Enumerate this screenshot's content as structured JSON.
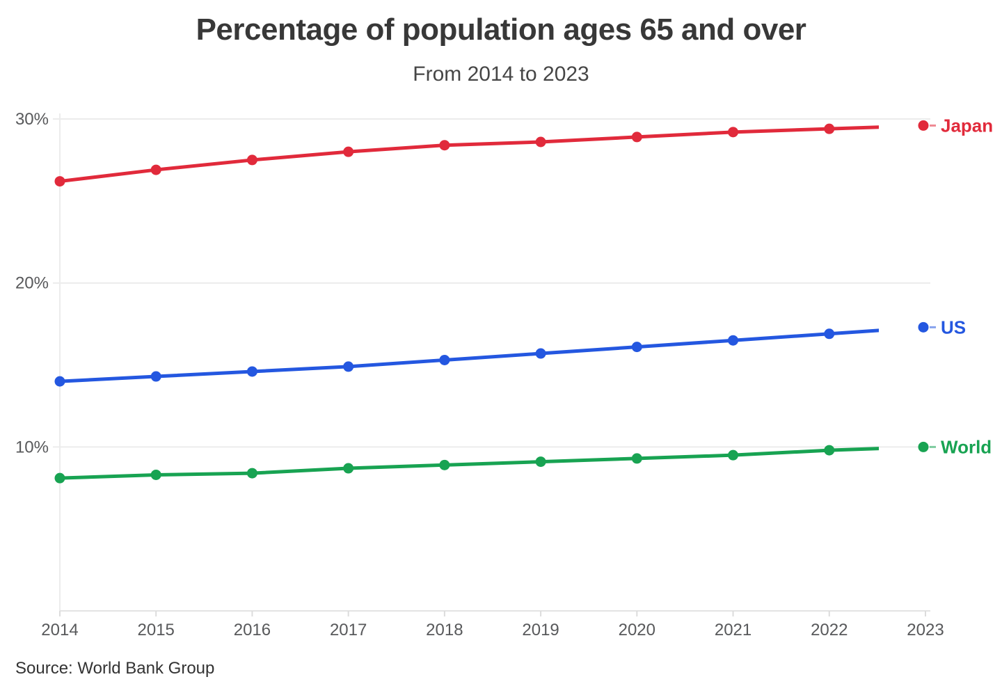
{
  "header": {
    "title": "Percentage of population ages 65 and over",
    "subtitle": "From 2014 to 2023"
  },
  "footer": {
    "source": "Source: World Bank Group"
  },
  "colors": {
    "japan": "#e12a3b",
    "us": "#2457e0",
    "world": "#18a352",
    "title_text": "#383838",
    "axis_text": "#58595b",
    "gridline": "#ececec"
  },
  "chart_data": {
    "type": "line",
    "title": "Percentage of population ages 65 and over",
    "subtitle": "From 2014 to 2023",
    "source": "Source: World Bank Group",
    "x": [
      2014,
      2015,
      2016,
      2017,
      2018,
      2019,
      2020,
      2021,
      2022,
      2023
    ],
    "series": [
      {
        "name": "Japan",
        "color": "#e12a3b",
        "values": [
          26.2,
          26.9,
          27.5,
          28.0,
          28.4,
          28.6,
          28.9,
          29.2,
          29.4,
          29.6
        ]
      },
      {
        "name": "US",
        "color": "#2457e0",
        "values": [
          14.0,
          14.3,
          14.6,
          14.9,
          15.3,
          15.7,
          16.1,
          16.5,
          16.9,
          17.3
        ]
      },
      {
        "name": "World",
        "color": "#18a352",
        "values": [
          8.1,
          8.3,
          8.4,
          8.7,
          8.9,
          9.1,
          9.3,
          9.5,
          9.8,
          10.0
        ]
      }
    ],
    "xlabel": "",
    "ylabel": "",
    "y_ticks": [
      10,
      20,
      30
    ],
    "y_tick_suffix": "%",
    "ylim": [
      0,
      30.3
    ],
    "grid": "horizontal",
    "legend_position": "right-end-labels"
  }
}
